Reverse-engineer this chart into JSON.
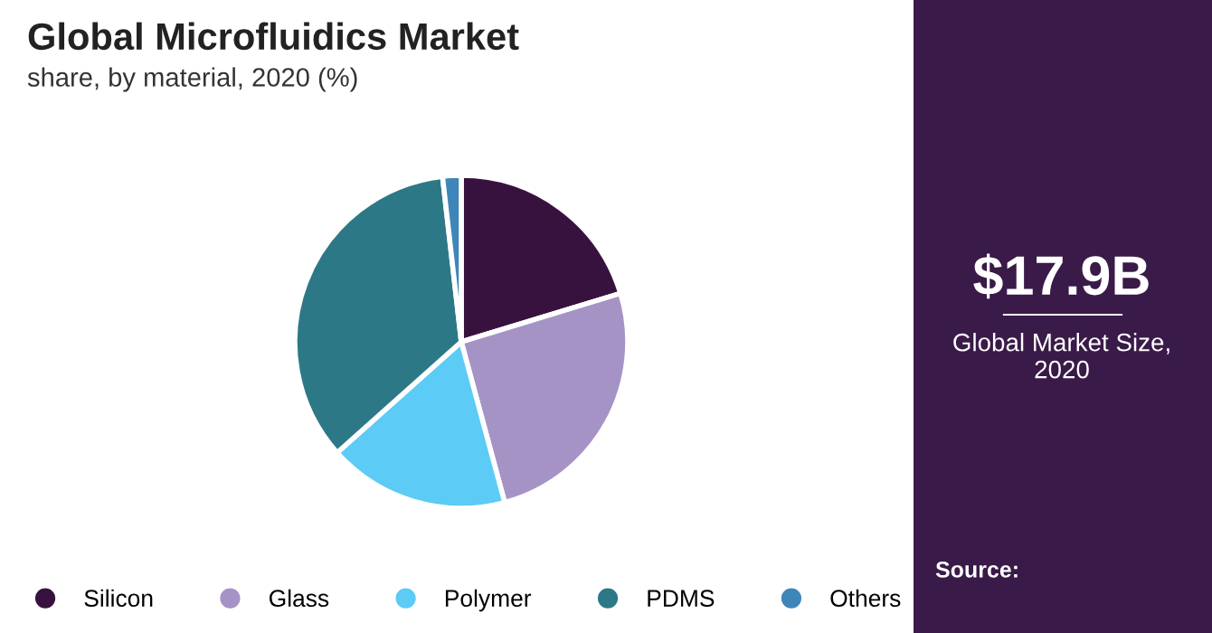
{
  "chart_data": {
    "type": "pie",
    "title": "Global Microfluidics Market",
    "subtitle": "share, by material, 2020 (%)",
    "categories": [
      "Silicon",
      "Glass",
      "Polymer",
      "PDMS",
      "Others"
    ],
    "values": [
      20.3,
      25.5,
      17.6,
      34.8,
      1.8
    ],
    "colors": [
      "#38123f",
      "#a693c6",
      "#5ccbf6",
      "#2d7887",
      "#3f86b8"
    ],
    "legend": "bottom",
    "annotations": [
      "$17.9B",
      "Global Market Size,\n2020",
      "Source:"
    ]
  }
}
